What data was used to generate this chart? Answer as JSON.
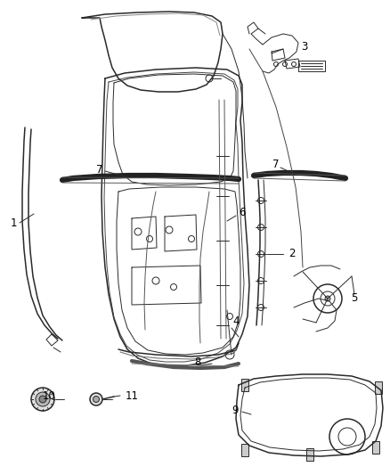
{
  "bg_color": "#ffffff",
  "line_color": "#2a2a2a",
  "label_color": "#000000",
  "figsize": [
    4.38,
    5.33
  ],
  "dpi": 100,
  "label_fontsize": 8.5
}
